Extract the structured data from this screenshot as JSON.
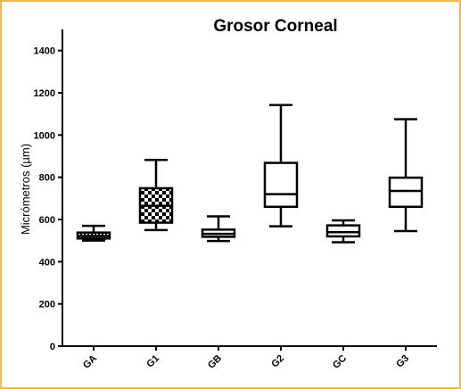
{
  "chart_data": {
    "type": "boxplot",
    "title": "Grosor Corneal",
    "ylabel": "Micrómetros (µm)",
    "xlabel": "",
    "ylim": [
      0,
      1500
    ],
    "yticks": [
      0,
      200,
      400,
      600,
      800,
      1000,
      1200,
      1400
    ],
    "grid": false,
    "categories": [
      "GA",
      "G1",
      "GB",
      "G2",
      "GC",
      "G3"
    ],
    "boxes": [
      {
        "label": "GA",
        "min": 500,
        "q1": 510,
        "median": 522,
        "q3": 538,
        "max": 570,
        "fill": "crosshatch"
      },
      {
        "label": "G1",
        "min": 550,
        "q1": 585,
        "median": 665,
        "q3": 748,
        "max": 882,
        "fill": "checker"
      },
      {
        "label": "GB",
        "min": 498,
        "q1": 518,
        "median": 532,
        "q3": 552,
        "max": 615,
        "fill": "none"
      },
      {
        "label": "G2",
        "min": 568,
        "q1": 660,
        "median": 720,
        "q3": 868,
        "max": 1142,
        "fill": "none"
      },
      {
        "label": "GC",
        "min": 492,
        "q1": 520,
        "median": 540,
        "q3": 572,
        "max": 596,
        "fill": "none"
      },
      {
        "label": "G3",
        "min": 545,
        "q1": 660,
        "median": 735,
        "q3": 798,
        "max": 1075,
        "fill": "none"
      }
    ]
  },
  "colors": {
    "frame": "#f5b843",
    "ink": "#000000",
    "background": "#ffffff"
  }
}
